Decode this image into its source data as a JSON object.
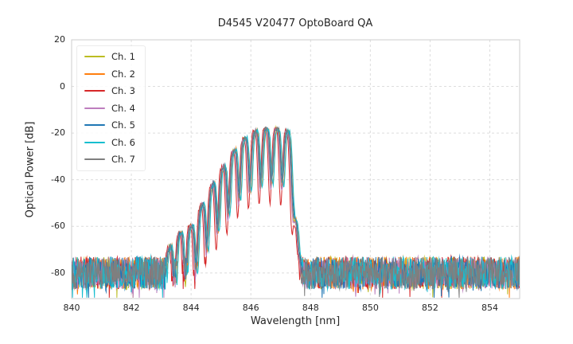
{
  "chart_data": {
    "type": "line",
    "title": "D4545 V20477 OptoBoard QA",
    "xlabel": "Wavelength [nm]",
    "ylabel": "Optical Power [dB]",
    "xlim": [
      840,
      855
    ],
    "ylim": [
      -91,
      20
    ],
    "xticks": [
      840,
      842,
      844,
      846,
      848,
      850,
      852,
      854
    ],
    "yticks": [
      20,
      0,
      -20,
      -40,
      -60,
      -80
    ],
    "grid": true,
    "legend_position": "upper left",
    "noise_floor_db": -78,
    "mode_period_nm": 0.36,
    "mode_center_nm": 846.5,
    "envelope_db": [
      [
        843.0,
        -76
      ],
      [
        843.3,
        -68
      ],
      [
        843.6,
        -63
      ],
      [
        844.0,
        -60
      ],
      [
        844.2,
        -55
      ],
      [
        844.5,
        -47
      ],
      [
        844.8,
        -40
      ],
      [
        845.1,
        -34
      ],
      [
        845.4,
        -28
      ],
      [
        845.7,
        -23
      ],
      [
        846.0,
        -20
      ],
      [
        846.3,
        -18.5
      ],
      [
        846.7,
        -18
      ],
      [
        847.0,
        -18.5
      ],
      [
        847.25,
        -19.5
      ],
      [
        847.4,
        -28
      ],
      [
        847.5,
        -55
      ],
      [
        847.6,
        -72
      ],
      [
        847.8,
        -77
      ]
    ],
    "series": [
      {
        "name": "Ch. 1",
        "color": "#bcbd22",
        "offset_nm": 0.0,
        "dip_depth_db": 25,
        "seed": 11
      },
      {
        "name": "Ch. 2",
        "color": "#ff7f0e",
        "offset_nm": 0.05,
        "dip_depth_db": 24,
        "seed": 22
      },
      {
        "name": "Ch. 3",
        "color": "#d62728",
        "offset_nm": -0.04,
        "dip_depth_db": 32,
        "seed": 33
      },
      {
        "name": "Ch. 4",
        "color": "#bd7ebe",
        "offset_nm": -0.01,
        "dip_depth_db": 26,
        "seed": 44
      },
      {
        "name": "Ch. 5",
        "color": "#1f77b4",
        "offset_nm": 0.02,
        "dip_depth_db": 22,
        "seed": 55
      },
      {
        "name": "Ch. 6",
        "color": "#17becf",
        "offset_nm": 0.06,
        "dip_depth_db": 24,
        "seed": 66
      },
      {
        "name": "Ch. 7",
        "color": "#7f7f7f",
        "offset_nm": 0.0,
        "dip_depth_db": 23,
        "seed": 77
      }
    ]
  }
}
